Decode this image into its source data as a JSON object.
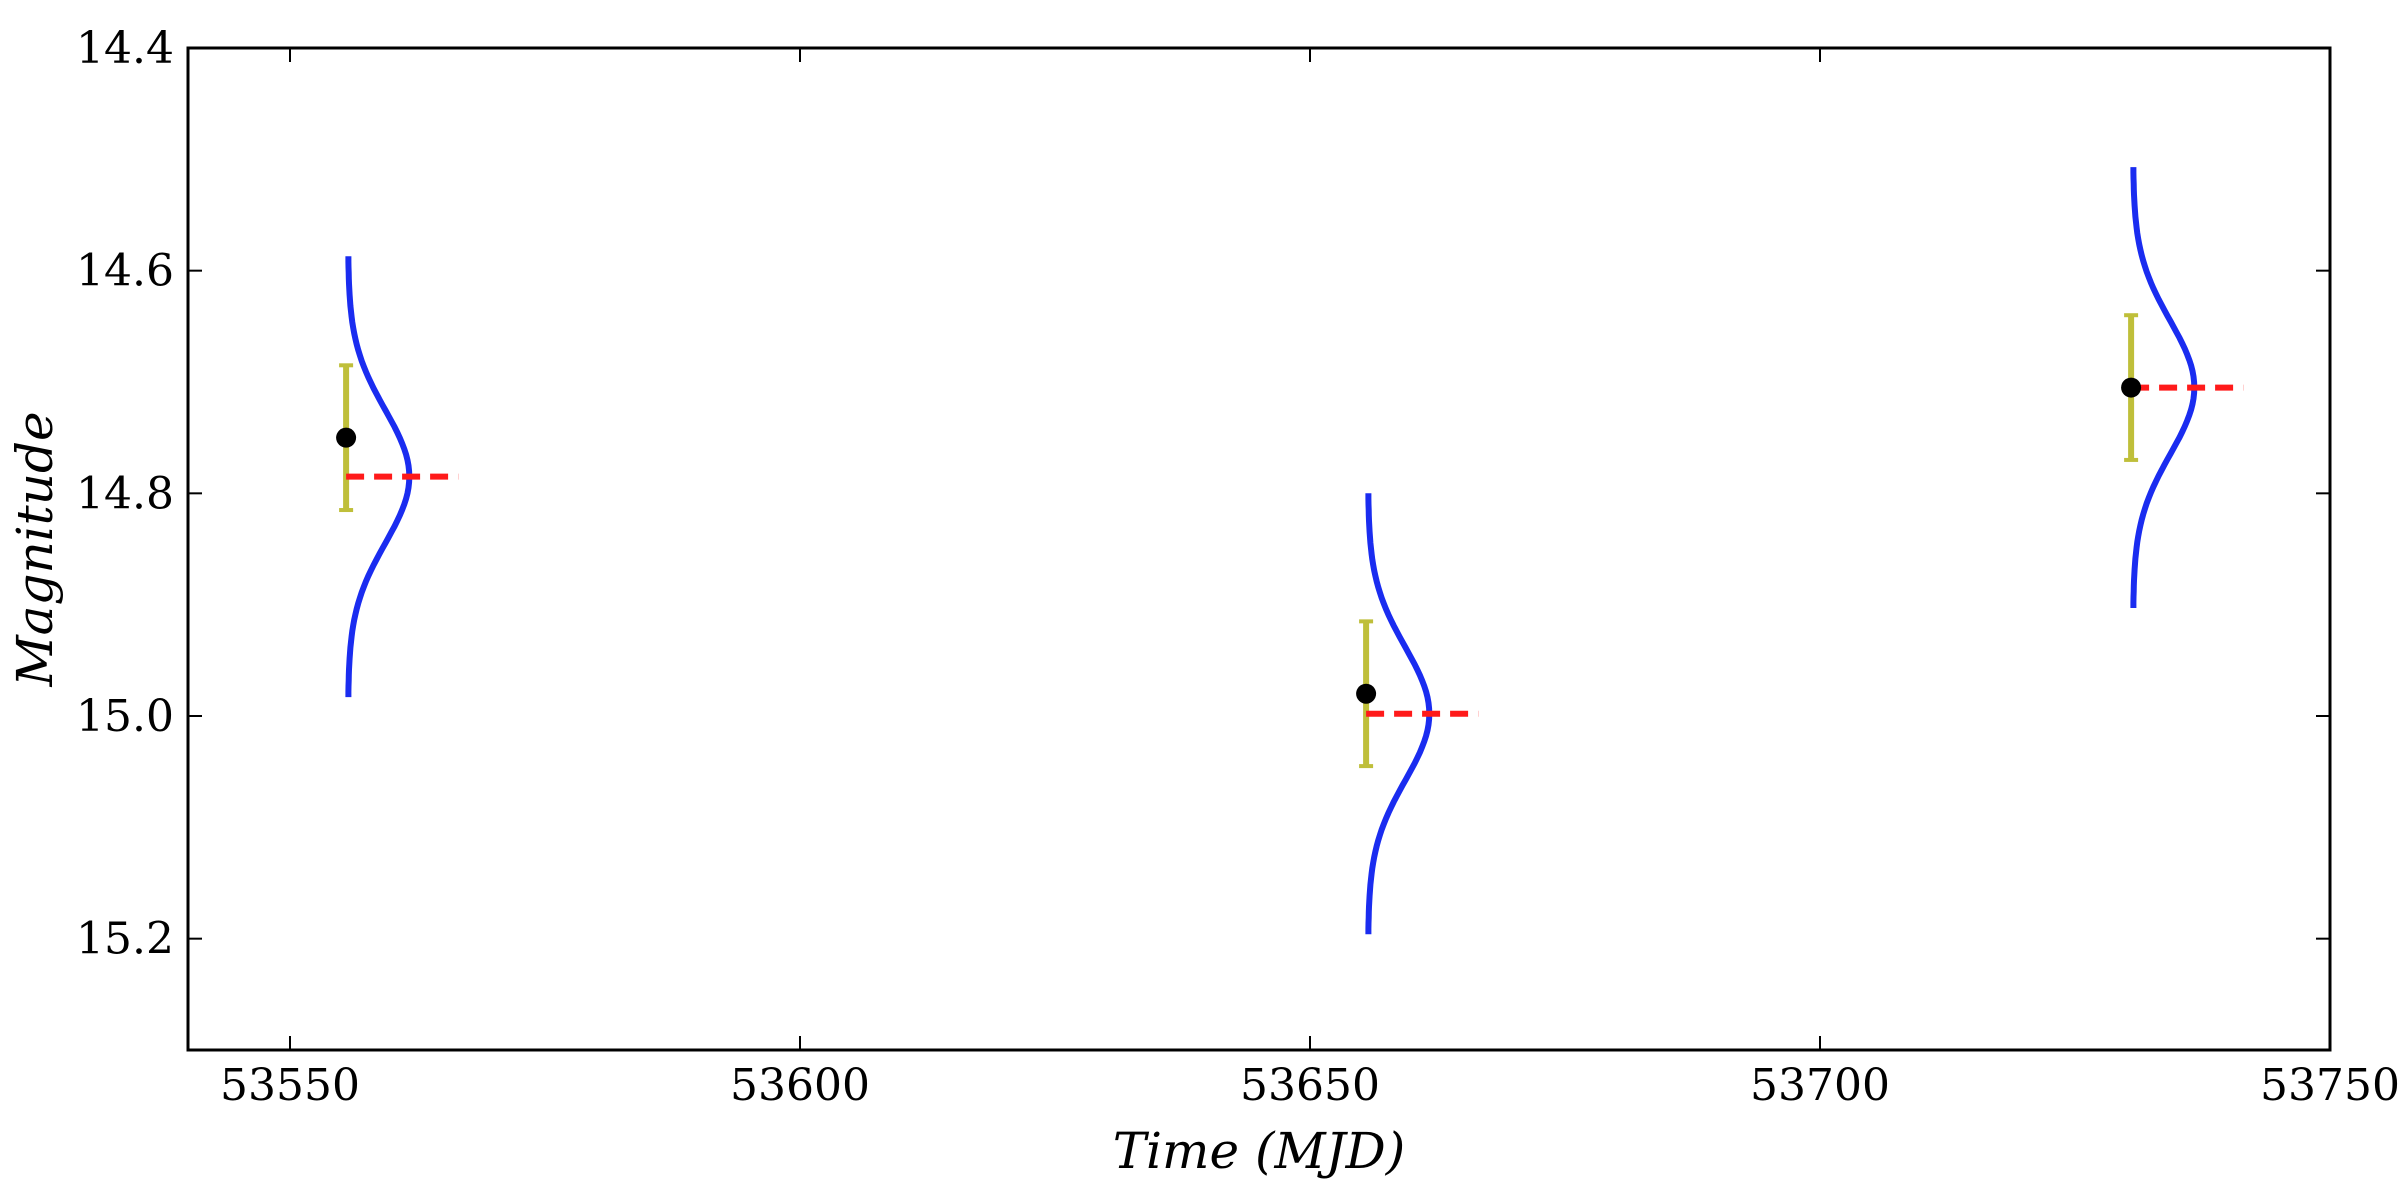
{
  "chart_data": {
    "type": "scatter",
    "xlabel": "Time (MJD)",
    "ylabel": "Magnitude",
    "xlim": [
      53540,
      53750
    ],
    "ylim": [
      15.3,
      14.4
    ],
    "y_inverted": true,
    "grid": false,
    "x_ticks": [
      "53550",
      "53600",
      "53650",
      "53700",
      "53750"
    ],
    "y_ticks": [
      "14.4",
      "14.6",
      "14.8",
      "15.0",
      "15.2"
    ],
    "observations": [
      {
        "x": 53555.5,
        "y": 14.75,
        "yerr": 0.065,
        "model": 14.785,
        "sigma": 0.06
      },
      {
        "x": 53655.5,
        "y": 14.98,
        "yerr": 0.065,
        "model": 14.998,
        "sigma": 0.06
      },
      {
        "x": 53730.5,
        "y": 14.705,
        "yerr": 0.065,
        "model": 14.705,
        "sigma": 0.06
      }
    ],
    "colors": {
      "point": "#000000",
      "errorbar": "#bfbf3a",
      "model_line": "#ff1a1a",
      "distribution": "#1a2cf0"
    }
  }
}
